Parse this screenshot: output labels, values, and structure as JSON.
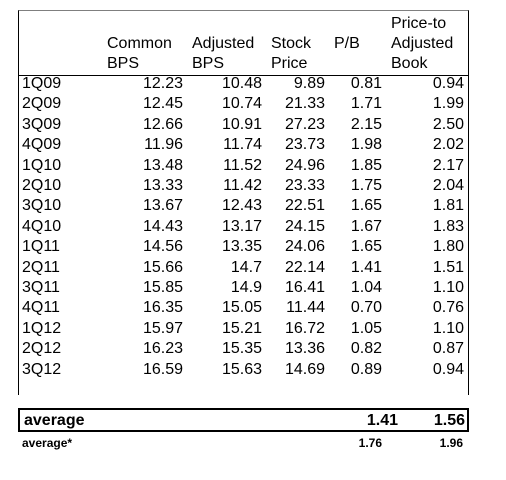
{
  "headers": {
    "common_bps": [
      "Common",
      "BPS"
    ],
    "adjusted_bps": [
      "Adjusted",
      "BPS"
    ],
    "stock_price": [
      "Stock",
      "Price"
    ],
    "pb": "P/B",
    "price_to_adjusted_book": [
      "Price-to",
      "Adjusted",
      "Book"
    ]
  },
  "rows": [
    {
      "period": "1Q09",
      "common_bps": "12.23",
      "adjusted_bps": "10.48",
      "stock_price": "9.89",
      "pb": "0.81",
      "ptab": "0.94"
    },
    {
      "period": "2Q09",
      "common_bps": "12.45",
      "adjusted_bps": "10.74",
      "stock_price": "21.33",
      "pb": "1.71",
      "ptab": "1.99"
    },
    {
      "period": "3Q09",
      "common_bps": "12.66",
      "adjusted_bps": "10.91",
      "stock_price": "27.23",
      "pb": "2.15",
      "ptab": "2.50"
    },
    {
      "period": "4Q09",
      "common_bps": "11.96",
      "adjusted_bps": "11.74",
      "stock_price": "23.73",
      "pb": "1.98",
      "ptab": "2.02"
    },
    {
      "period": "1Q10",
      "common_bps": "13.48",
      "adjusted_bps": "11.52",
      "stock_price": "24.96",
      "pb": "1.85",
      "ptab": "2.17"
    },
    {
      "period": "2Q10",
      "common_bps": "13.33",
      "adjusted_bps": "11.42",
      "stock_price": "23.33",
      "pb": "1.75",
      "ptab": "2.04"
    },
    {
      "period": "3Q10",
      "common_bps": "13.67",
      "adjusted_bps": "12.43",
      "stock_price": "22.51",
      "pb": "1.65",
      "ptab": "1.81"
    },
    {
      "period": "4Q10",
      "common_bps": "14.43",
      "adjusted_bps": "13.17",
      "stock_price": "24.15",
      "pb": "1.67",
      "ptab": "1.83"
    },
    {
      "period": "1Q11",
      "common_bps": "14.56",
      "adjusted_bps": "13.35",
      "stock_price": "24.06",
      "pb": "1.65",
      "ptab": "1.80"
    },
    {
      "period": "2Q11",
      "common_bps": "15.66",
      "adjusted_bps": "14.7",
      "stock_price": "22.14",
      "pb": "1.41",
      "ptab": "1.51"
    },
    {
      "period": "3Q11",
      "common_bps": "15.85",
      "adjusted_bps": "14.9",
      "stock_price": "16.41",
      "pb": "1.04",
      "ptab": "1.10"
    },
    {
      "period": "4Q11",
      "common_bps": "16.35",
      "adjusted_bps": "15.05",
      "stock_price": "11.44",
      "pb": "0.70",
      "ptab": "0.76"
    },
    {
      "period": "1Q12",
      "common_bps": "15.97",
      "adjusted_bps": "15.21",
      "stock_price": "16.72",
      "pb": "1.05",
      "ptab": "1.10"
    },
    {
      "period": "2Q12",
      "common_bps": "16.23",
      "adjusted_bps": "15.35",
      "stock_price": "13.36",
      "pb": "0.82",
      "ptab": "0.87"
    },
    {
      "period": "3Q12",
      "common_bps": "16.59",
      "adjusted_bps": "15.63",
      "stock_price": "14.69",
      "pb": "0.89",
      "ptab": "0.94"
    }
  ],
  "average": {
    "label": "average",
    "pb": "1.41",
    "ptab": "1.56"
  },
  "average_star": {
    "label": "average*",
    "pb": "1.76",
    "ptab": "1.96"
  }
}
